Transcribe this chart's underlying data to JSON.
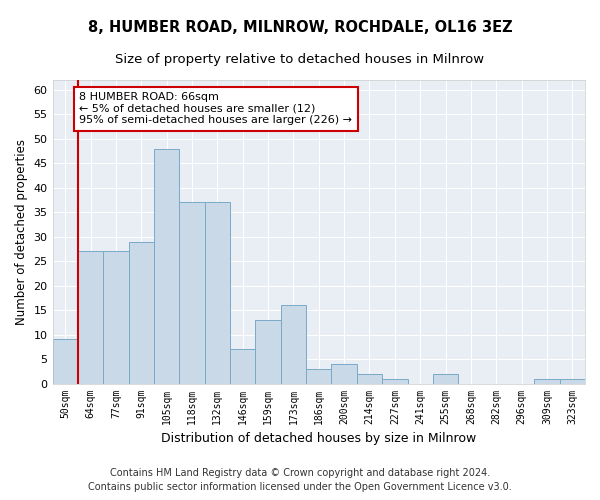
{
  "title1": "8, HUMBER ROAD, MILNROW, ROCHDALE, OL16 3EZ",
  "title2": "Size of property relative to detached houses in Milnrow",
  "xlabel": "Distribution of detached houses by size in Milnrow",
  "ylabel": "Number of detached properties",
  "categories": [
    "50sqm",
    "64sqm",
    "77sqm",
    "91sqm",
    "105sqm",
    "118sqm",
    "132sqm",
    "146sqm",
    "159sqm",
    "173sqm",
    "186sqm",
    "200sqm",
    "214sqm",
    "227sqm",
    "241sqm",
    "255sqm",
    "268sqm",
    "282sqm",
    "296sqm",
    "309sqm",
    "323sqm"
  ],
  "values": [
    9,
    27,
    27,
    29,
    48,
    37,
    37,
    7,
    13,
    16,
    3,
    4,
    2,
    1,
    0,
    2,
    0,
    0,
    0,
    1,
    1
  ],
  "bar_color": "#c9d9e8",
  "bar_edge_color": "#7aaac8",
  "annotation_title": "8 HUMBER ROAD: 66sqm",
  "annotation_line1": "← 5% of detached houses are smaller (12)",
  "annotation_line2": "95% of semi-detached houses are larger (226) →",
  "red_line_color": "#cc0000",
  "annotation_box_edge": "#cc0000",
  "ylim": [
    0,
    62
  ],
  "yticks": [
    0,
    5,
    10,
    15,
    20,
    25,
    30,
    35,
    40,
    45,
    50,
    55,
    60
  ],
  "footnote1": "Contains HM Land Registry data © Crown copyright and database right 2024.",
  "footnote2": "Contains public sector information licensed under the Open Government Licence v3.0.",
  "bg_color": "#ffffff",
  "plot_bg_color": "#e8eef4",
  "title_fontsize": 10.5,
  "subtitle_fontsize": 9.5,
  "footnote_fontsize": 7.0
}
